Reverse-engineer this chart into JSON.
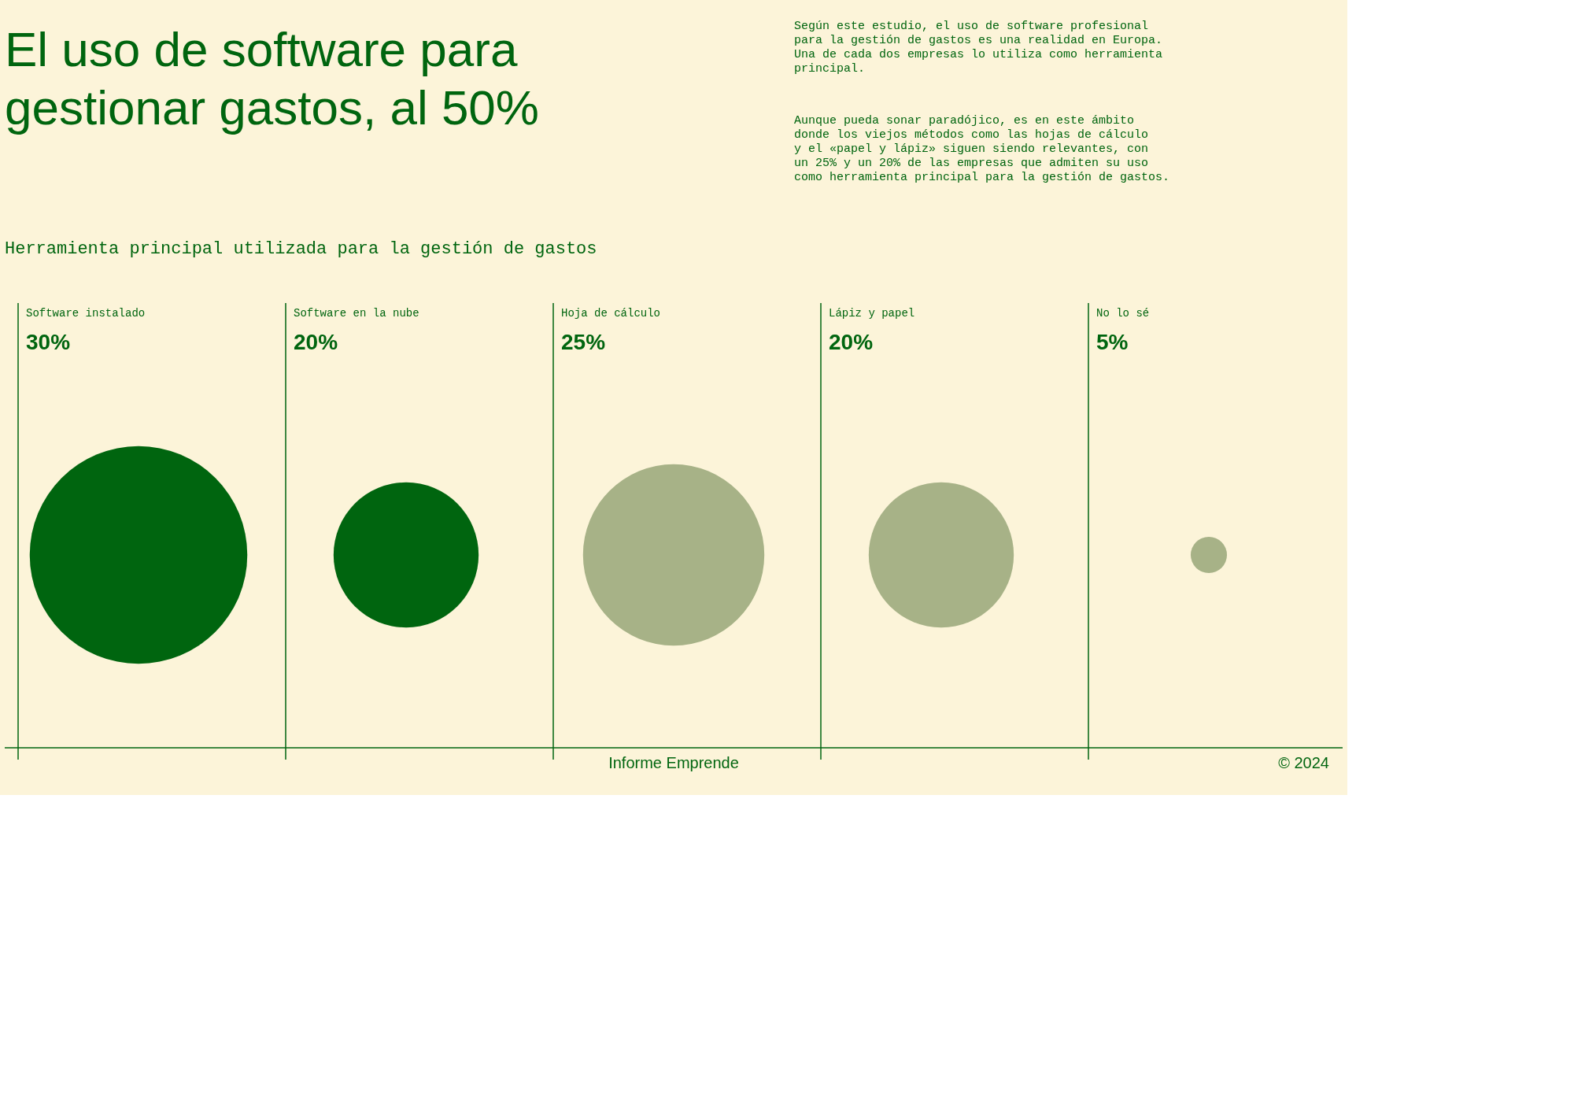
{
  "chart_data": {
    "type": "other",
    "title": "El uso de software para\ngestionar gastos, al 50%",
    "subtitle": "Herramienta principal utilizada para la gestión de gastos",
    "categories": [
      "Software instalado",
      "Software en la nube",
      "Hoja de cálculo",
      "Lápiz y papel",
      "No lo sé"
    ],
    "values": [
      30,
      20,
      25,
      20,
      5
    ],
    "colors": [
      "#00650f",
      "#00650f",
      "#a7b287",
      "#a7b287",
      "#a7b287"
    ],
    "value_labels": [
      "30%",
      "20%",
      "25%",
      "20%",
      "5%"
    ],
    "annotations": [
      "Según este estudio, el uso de software profesional\npara la gestión de gastos es una realidad en Europa.\nUna de cada dos empresas lo utiliza como herramienta\nprincipal.",
      "Aunque pueda sonar paradójico, es en este ámbito\ndonde los viejos métodos como las hojas de cálculo\ny el «papel y lápiz» siguen siendo relevantes, con\nun 25% y un 20% de las empresas que admiten su uso\ncomo herramienta principal para la gestión de gastos.",
      "Informe Emprende",
      "© 2024"
    ]
  }
}
